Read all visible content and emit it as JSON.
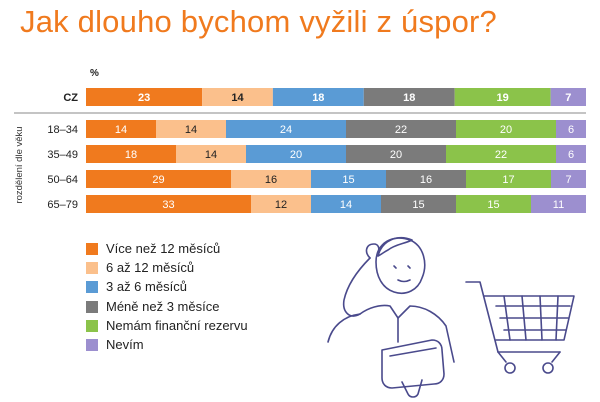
{
  "title": "Jak dlouho bychom vyžili z úspor?",
  "unit_label": "%",
  "group_axis_label": "rozdělení dle věku",
  "chart_data": {
    "type": "bar",
    "orientation": "horizontal",
    "stacked": true,
    "percent": true,
    "categories": [
      "CZ",
      "18–34",
      "35–49",
      "50–64",
      "65–79"
    ],
    "series": [
      {
        "name": "Více než 12 měsíců",
        "color": "#f07a1e",
        "values": [
          23,
          14,
          18,
          29,
          33
        ]
      },
      {
        "name": "6 až 12 měsíců",
        "color": "#fbc08c",
        "values": [
          14,
          14,
          14,
          16,
          12
        ]
      },
      {
        "name": "3 až 6 měsíců",
        "color": "#5a9bd5",
        "values": [
          18,
          24,
          20,
          15,
          14
        ]
      },
      {
        "name": "Méně než 3 měsíce",
        "color": "#7b7b7b",
        "values": [
          18,
          22,
          20,
          16,
          15
        ]
      },
      {
        "name": "Nemám finanční rezervu",
        "color": "#8bc34a",
        "values": [
          19,
          20,
          22,
          17,
          15
        ]
      },
      {
        "name": "Nevím",
        "color": "#9c8fcf",
        "values": [
          7,
          6,
          6,
          7,
          11
        ]
      }
    ],
    "legend_position": "bottom-left",
    "grid": false
  },
  "illustration": {
    "name": "thinking-person-with-wallet-and-shopping-cart",
    "color": "#4a4a8c"
  }
}
